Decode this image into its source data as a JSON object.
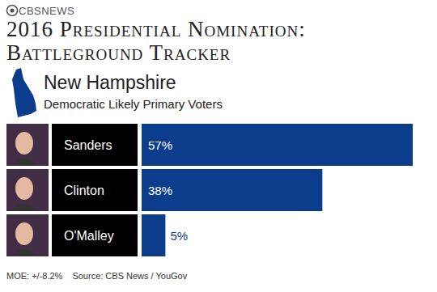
{
  "chart_data": {
    "type": "bar",
    "orientation": "horizontal",
    "logo": "CBSNEWS",
    "title": "2016 Presidential Nomination: Battleground Tracker",
    "region": "New Hampshire",
    "subtitle": "Democratic Likely Primary Voters",
    "categories": [
      "Sanders",
      "Clinton",
      "O'Malley"
    ],
    "values": [
      57,
      38,
      5
    ],
    "value_labels": [
      "57%",
      "38%",
      "5%"
    ],
    "data_labels": true,
    "color": "#0c3c8c",
    "xlim": [
      0,
      57
    ],
    "tick_labels": false,
    "grid": false,
    "annotations": [
      "MOE: +/-8.2%",
      "Source: CBS News / YouGov"
    ]
  }
}
